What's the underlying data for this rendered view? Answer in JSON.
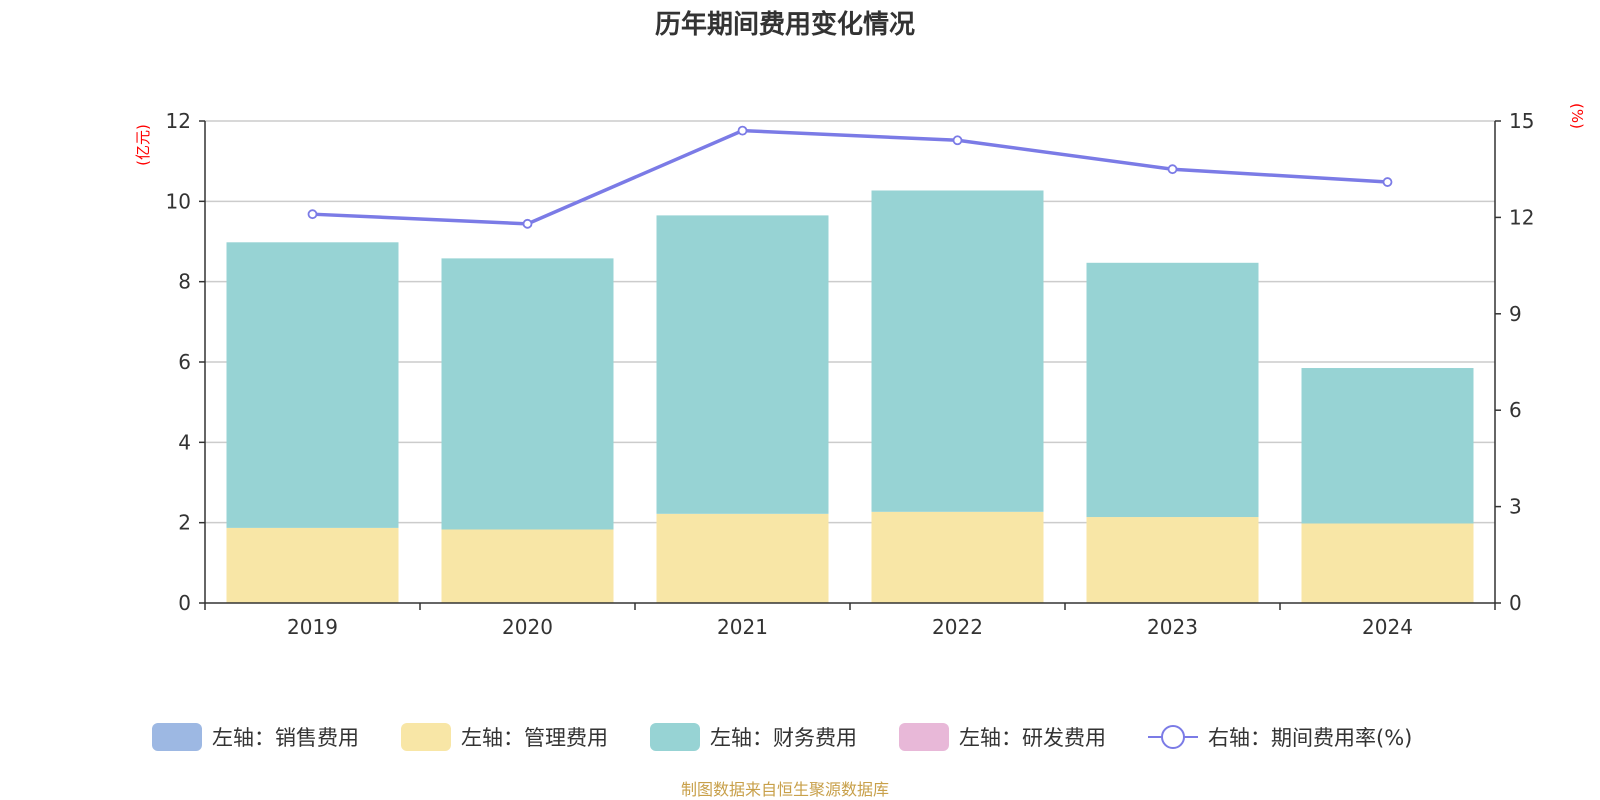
{
  "chart_data": {
    "type": "bar",
    "title": "历年期间费用变化情况",
    "categories": [
      "2019",
      "2020",
      "2021",
      "2022",
      "2023",
      "2024"
    ],
    "left_axis": {
      "unit": "(亿元)",
      "ylim": [
        0,
        12
      ],
      "ticks": [
        "0",
        "2",
        "4",
        "6",
        "8",
        "10",
        "12"
      ]
    },
    "right_axis": {
      "unit": "(%)",
      "ylim": [
        0,
        15
      ],
      "ticks": [
        "0",
        "3",
        "6",
        "9",
        "12",
        "15"
      ]
    },
    "stacked": true,
    "series": [
      {
        "name": "左轴：销售费用",
        "axis": "left",
        "type": "bar",
        "color": "#9db8e3",
        "values": [
          0,
          0,
          0,
          0,
          0,
          0
        ]
      },
      {
        "name": "左轴：管理费用",
        "axis": "left",
        "type": "bar",
        "color": "#f8e6a6",
        "values": [
          1.87,
          1.83,
          2.22,
          2.27,
          2.14,
          1.98
        ]
      },
      {
        "name": "左轴：财务费用",
        "axis": "left",
        "type": "bar",
        "color": "#97d3d4",
        "values": [
          7.11,
          6.75,
          7.43,
          8.0,
          6.33,
          3.87
        ]
      },
      {
        "name": "左轴：研发费用",
        "axis": "left",
        "type": "bar",
        "color": "#e8b8d8",
        "values": [
          0,
          0,
          0,
          0,
          0,
          0
        ]
      },
      {
        "name": "右轴：期间费用率(%)",
        "axis": "right",
        "type": "line",
        "color": "#7b7be6",
        "values": [
          12.1,
          11.8,
          14.7,
          14.4,
          13.5,
          13.1
        ]
      }
    ],
    "grid": true,
    "legend_position": "bottom"
  },
  "source": "制图数据来自恒生聚源数据库"
}
